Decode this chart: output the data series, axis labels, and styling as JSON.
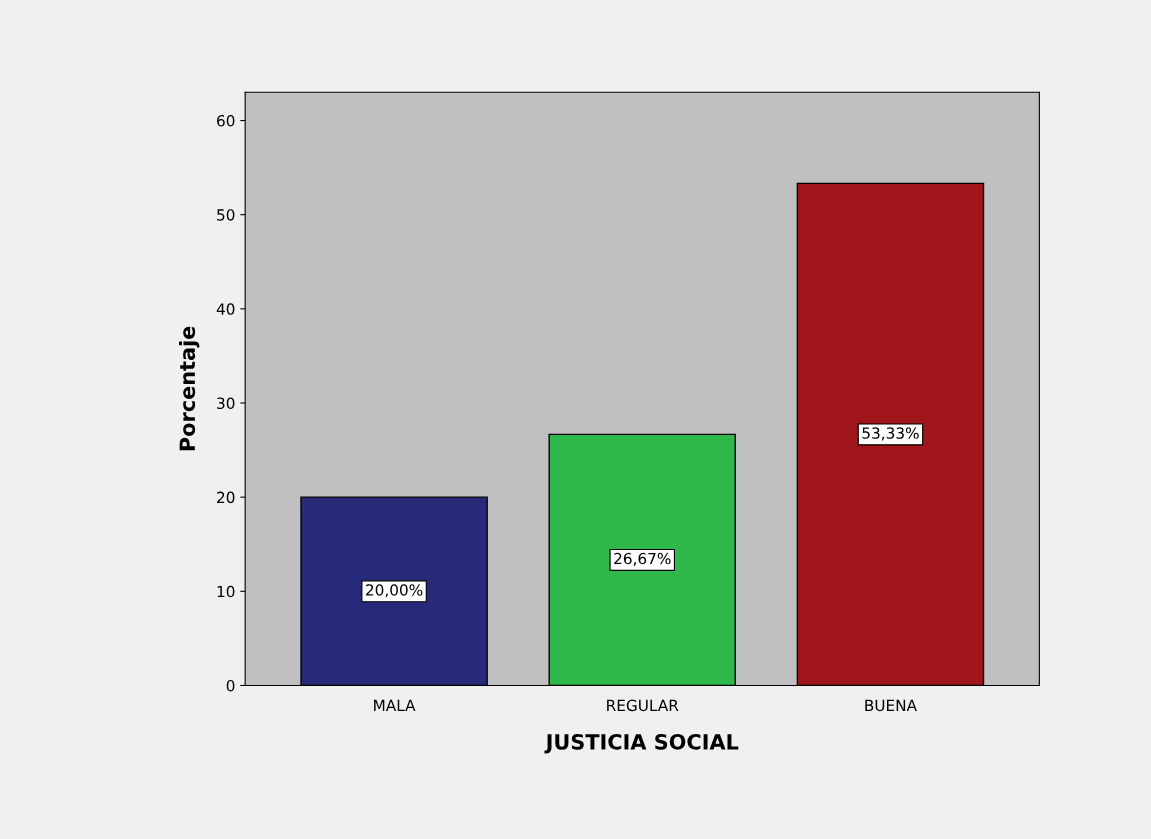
{
  "chart_data": {
    "type": "bar",
    "xlabel": "JUSTICIA SOCIAL",
    "ylabel": "Porcentaje",
    "categories": [
      "MALA",
      "REGULAR",
      "BUENA"
    ],
    "values": [
      20.0,
      26.67,
      53.33
    ],
    "colors": [
      "#272a78",
      "#2eb84a",
      "#a0151a"
    ],
    "value_labels": [
      "20,00%",
      "26,67%",
      "53,33%"
    ],
    "ylim": [
      0,
      63
    ],
    "yticks": [
      0,
      10,
      20,
      30,
      40,
      50,
      60
    ],
    "grid": false,
    "legend": false
  }
}
